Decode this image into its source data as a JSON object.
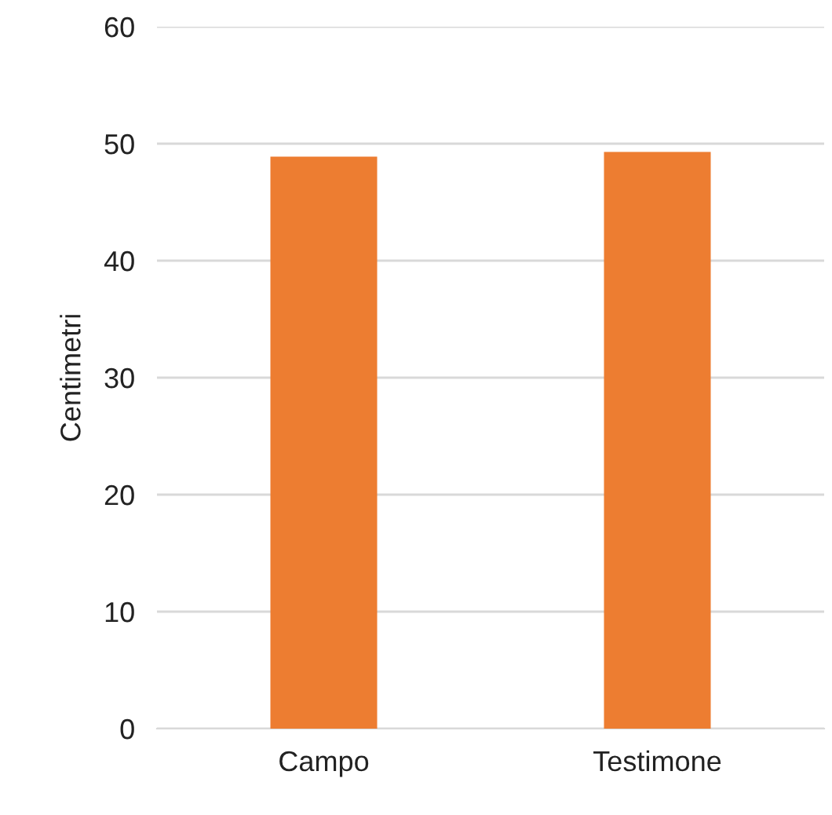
{
  "chart_data": {
    "type": "bar",
    "ylabel": "Centimetri",
    "categories": [
      "Campo",
      "Testimone"
    ],
    "values": [
      48.9,
      49.3
    ],
    "color": "#ed7d31",
    "ylim": [
      0,
      60
    ],
    "yticks": [
      0,
      10,
      20,
      30,
      40,
      50,
      60
    ],
    "grid": "y"
  }
}
